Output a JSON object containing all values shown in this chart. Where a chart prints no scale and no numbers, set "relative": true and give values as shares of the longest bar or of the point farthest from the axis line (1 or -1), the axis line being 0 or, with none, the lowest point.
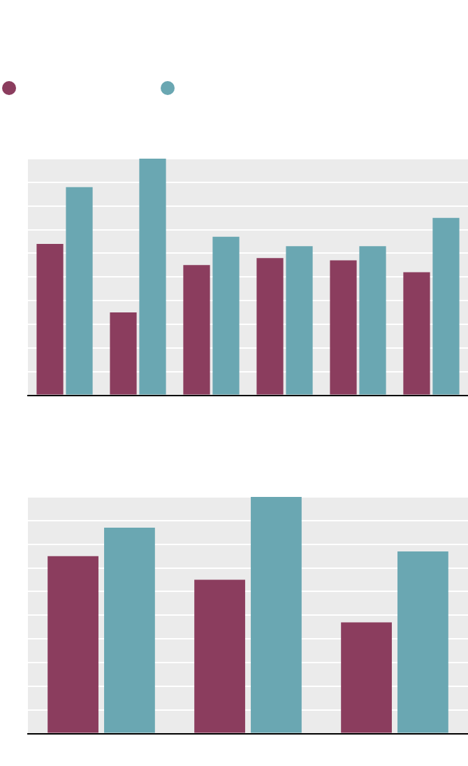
{
  "chart_data": [
    {
      "type": "bar",
      "relative": true,
      "grid": true,
      "categories": [
        null,
        null,
        null,
        null,
        null,
        null
      ],
      "series": [
        {
          "color": "#8b3d5e",
          "values": [
            0.64,
            0.35,
            0.55,
            0.58,
            0.57,
            0.52
          ]
        },
        {
          "color": "#6aa7b2",
          "values": [
            0.88,
            1,
            0.67,
            0.63,
            0.63,
            0.75
          ]
        }
      ]
    },
    {
      "type": "bar",
      "relative": true,
      "grid": true,
      "categories": [
        null,
        null,
        null
      ],
      "series": [
        {
          "color": "#8b3d5e",
          "values": [
            0.75,
            0.65,
            0.47
          ]
        },
        {
          "color": "#6aa7b2",
          "values": [
            0.87,
            1,
            0.77
          ]
        }
      ]
    }
  ]
}
